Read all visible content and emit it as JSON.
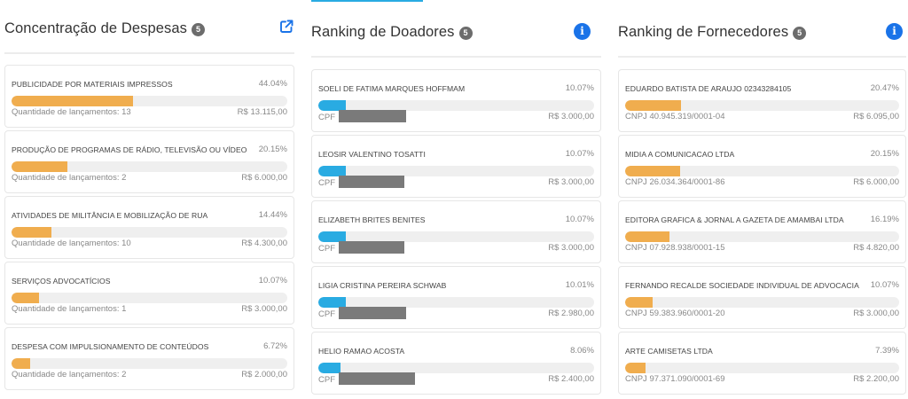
{
  "panels": [
    {
      "title": "Concentração de Despesas",
      "count": "5",
      "header_icon": "external-link-icon",
      "bar_color": "#f0ad4e",
      "items": [
        {
          "name": "PUBLICIDADE POR MATERIAIS IMPRESSOS",
          "percent_label": "44.04%",
          "percent": 44.04,
          "sub_label": "Quantidade de lançamentos: 13",
          "amount": "R$ 13.115,00"
        },
        {
          "name": "PRODUÇÃO DE PROGRAMAS DE RÁDIO, TELEVISÃO OU VÍDEO",
          "percent_label": "20.15%",
          "percent": 20.15,
          "sub_label": "Quantidade de lançamentos: 2",
          "amount": "R$ 6.000,00"
        },
        {
          "name": "ATIVIDADES DE MILITÂNCIA E MOBILIZAÇÃO DE RUA",
          "percent_label": "14.44%",
          "percent": 14.44,
          "sub_label": "Quantidade de lançamentos: 10",
          "amount": "R$ 4.300,00"
        },
        {
          "name": "SERVIÇOS ADVOCATÍCIOS",
          "percent_label": "10.07%",
          "percent": 10.07,
          "sub_label": "Quantidade de lançamentos: 1",
          "amount": "R$ 3.000,00"
        },
        {
          "name": "DESPESA COM IMPULSIONAMENTO DE CONTEÚDOS",
          "percent_label": "6.72%",
          "percent": 6.72,
          "sub_label": "Quantidade de lançamentos: 2",
          "amount": "R$ 2.000,00"
        }
      ]
    },
    {
      "title": "Ranking de Doadores",
      "count": "5",
      "header_icon": "info-icon",
      "bar_color": "#29abe2",
      "items": [
        {
          "name": "SOELI DE FATIMA MARQUES HOFFMAM",
          "percent_label": "10.07%",
          "percent": 10.07,
          "sub_label": "CPF",
          "redacted": true,
          "amount": "R$ 3.000,00"
        },
        {
          "name": "LEOSIR VALENTINO TOSATTI",
          "percent_label": "10.07%",
          "percent": 10.07,
          "sub_label": "CPF",
          "redacted": true,
          "amount": "R$ 3.000,00"
        },
        {
          "name": "ELIZABETH BRITES BENITES",
          "percent_label": "10.07%",
          "percent": 10.07,
          "sub_label": "CPF",
          "redacted": true,
          "amount": "R$ 3.000,00"
        },
        {
          "name": "LIGIA CRISTINA PEREIRA SCHWAB",
          "percent_label": "10.01%",
          "percent": 10.01,
          "sub_label": "CPF",
          "redacted": true,
          "amount": "R$ 2.980,00"
        },
        {
          "name": "HELIO RAMAO ACOSTA",
          "percent_label": "8.06%",
          "percent": 8.06,
          "sub_label": "CPF",
          "redacted": true,
          "amount": "R$ 2.400,00"
        }
      ]
    },
    {
      "title": "Ranking de Fornecedores",
      "count": "5",
      "header_icon": "info-icon",
      "bar_color": "#f0ad4e",
      "items": [
        {
          "name": "EDUARDO BATISTA DE ARAUJO 02343284105",
          "percent_label": "20.47%",
          "percent": 20.47,
          "sub_label": "CNPJ 40.945.319/0001-04",
          "amount": "R$ 6.095,00"
        },
        {
          "name": "MIDIA A COMUNICACAO LTDA",
          "percent_label": "20.15%",
          "percent": 20.15,
          "sub_label": "CNPJ 26.034.364/0001-86",
          "amount": "R$ 6.000,00"
        },
        {
          "name": "EDITORA GRAFICA & JORNAL A GAZETA DE AMAMBAI LTDA",
          "percent_label": "16.19%",
          "percent": 16.19,
          "sub_label": "CNPJ 07.928.938/0001-15",
          "amount": "R$ 4.820,00"
        },
        {
          "name": "FERNANDO RECALDE SOCIEDADE INDIVIDUAL DE ADVOCACIA",
          "percent_label": "10.07%",
          "percent": 10.07,
          "sub_label": "CNPJ 59.383.960/0001-20",
          "amount": "R$ 3.000,00"
        },
        {
          "name": "ARTE CAMISETAS LTDA",
          "percent_label": "7.39%",
          "percent": 7.39,
          "sub_label": "CNPJ 97.371.090/0001-69",
          "amount": "R$ 2.200,00"
        }
      ]
    }
  ],
  "colors": {
    "accent_blue": "#1a73e8",
    "donor_bar": "#29abe2",
    "expense_bar": "#f0ad4e",
    "bar_track": "#efefef",
    "badge": "#6c6c6c",
    "redaction": "#7a7a7a"
  }
}
